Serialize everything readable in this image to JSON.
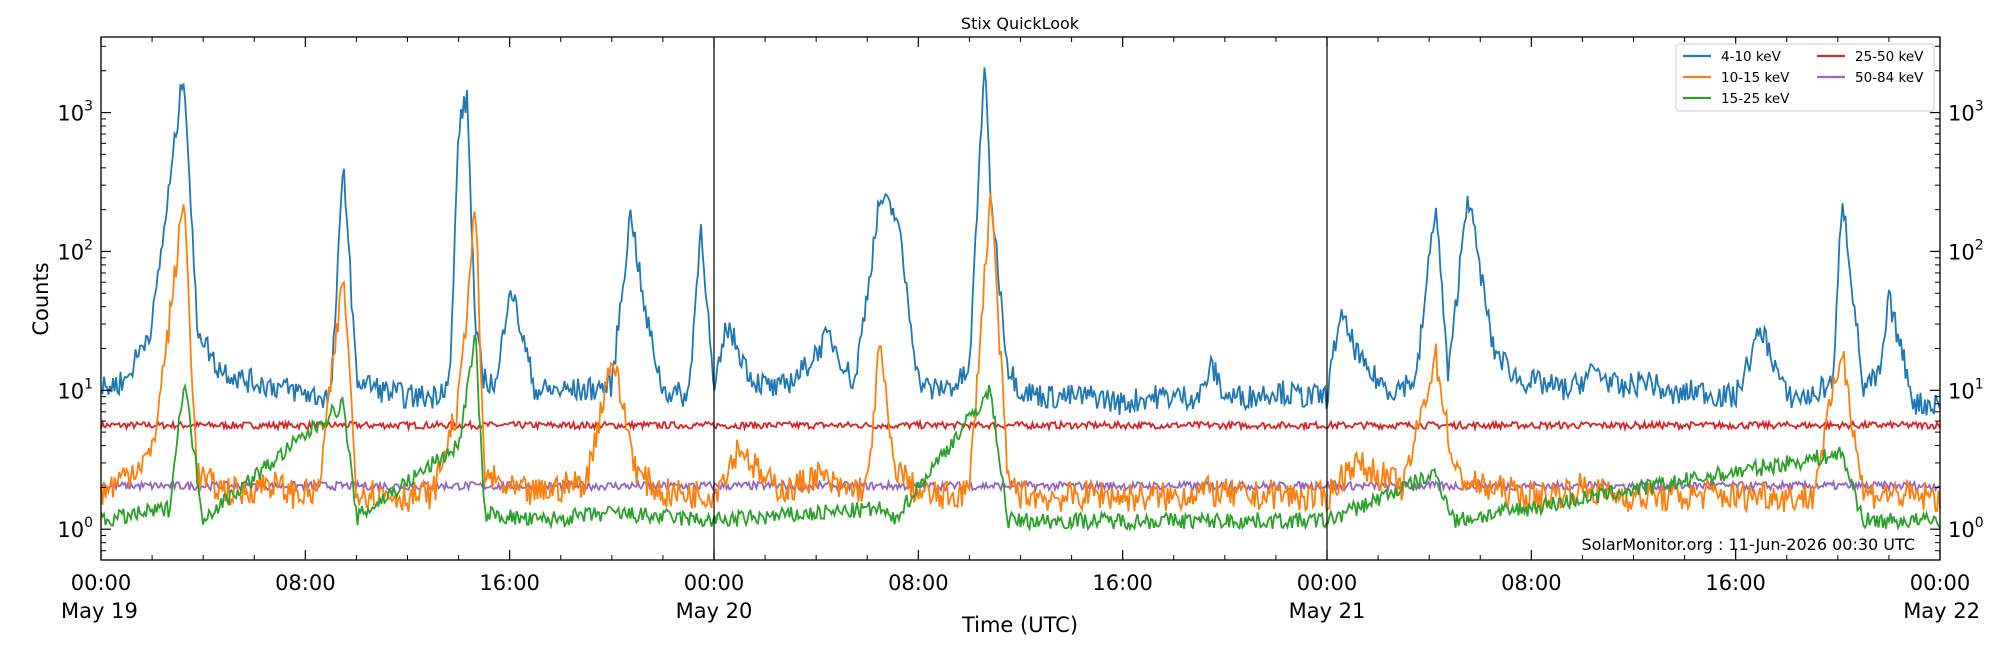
{
  "chart_data": {
    "type": "line",
    "title": "Stix QuickLook",
    "xlabel": "Time (UTC)",
    "ylabel": "Counts",
    "yscale": "log",
    "ylim": [
      0.6,
      3500
    ],
    "xlim": [
      "2026-05-19T00:00",
      "2026-05-22T00:00"
    ],
    "grid": false,
    "legend_position": "top-right",
    "watermark": "SolarMonitor.org : 11-Jun-2026 00:30 UTC",
    "x_ticks": [
      {
        "time": "2026-05-19T00:00",
        "line1": "00:00",
        "line2": "May 19"
      },
      {
        "time": "2026-05-19T08:00",
        "line1": "08:00",
        "line2": ""
      },
      {
        "time": "2026-05-19T16:00",
        "line1": "16:00",
        "line2": ""
      },
      {
        "time": "2026-05-20T00:00",
        "line1": "00:00",
        "line2": "May 20"
      },
      {
        "time": "2026-05-20T08:00",
        "line1": "08:00",
        "line2": ""
      },
      {
        "time": "2026-05-20T16:00",
        "line1": "16:00",
        "line2": ""
      },
      {
        "time": "2026-05-21T00:00",
        "line1": "00:00",
        "line2": "May 21"
      },
      {
        "time": "2026-05-21T08:00",
        "line1": "08:00",
        "line2": ""
      },
      {
        "time": "2026-05-21T16:00",
        "line1": "16:00",
        "line2": ""
      },
      {
        "time": "2026-05-22T00:00",
        "line1": "00:00",
        "line2": "May 22"
      }
    ],
    "y_ticks": [
      {
        "value": 1,
        "base": "10",
        "exp": "0"
      },
      {
        "value": 10,
        "base": "10",
        "exp": "1"
      },
      {
        "value": 100,
        "base": "10",
        "exp": "2"
      },
      {
        "value": 1000,
        "base": "10",
        "exp": "3"
      }
    ],
    "day_boundaries": [
      "2026-05-20T00:00",
      "2026-05-21T00:00"
    ],
    "series": [
      {
        "name": "4-10 keV",
        "color": "#1f77b4",
        "x": [
          "2026-05-19T00:00",
          "2026-05-19T01:00",
          "2026-05-19T02:00",
          "2026-05-19T02:40",
          "2026-05-19T03:15",
          "2026-05-19T03:45",
          "2026-05-19T04:30",
          "2026-05-19T05:30",
          "2026-05-19T06:30",
          "2026-05-19T07:30",
          "2026-05-19T08:30",
          "2026-05-19T09:00",
          "2026-05-19T09:30",
          "2026-05-19T10:00",
          "2026-05-19T11:00",
          "2026-05-19T12:00",
          "2026-05-19T13:00",
          "2026-05-19T13:40",
          "2026-05-19T14:00",
          "2026-05-19T14:20",
          "2026-05-19T14:40",
          "2026-05-19T15:00",
          "2026-05-19T15:30",
          "2026-05-19T16:00",
          "2026-05-19T17:00",
          "2026-05-19T18:00",
          "2026-05-19T19:00",
          "2026-05-19T20:00",
          "2026-05-19T20:45",
          "2026-05-19T21:15",
          "2026-05-19T22:00",
          "2026-05-19T23:00",
          "2026-05-19T23:30",
          "2026-05-20T00:00",
          "2026-05-20T00:30",
          "2026-05-20T01:30",
          "2026-05-20T02:30",
          "2026-05-20T03:30",
          "2026-05-20T04:30",
          "2026-05-20T05:30",
          "2026-05-20T06:30",
          "2026-05-20T07:10",
          "2026-05-20T08:00",
          "2026-05-20T08:30",
          "2026-05-20T09:30",
          "2026-05-20T10:00",
          "2026-05-20T10:35",
          "2026-05-20T10:50",
          "2026-05-20T11:30",
          "2026-05-20T12:00",
          "2026-05-20T13:00",
          "2026-05-20T14:00",
          "2026-05-20T15:00",
          "2026-05-20T16:00",
          "2026-05-20T17:00",
          "2026-05-20T18:00",
          "2026-05-20T19:00",
          "2026-05-20T19:30",
          "2026-05-20T20:00",
          "2026-05-20T21:00",
          "2026-05-20T22:00",
          "2026-05-20T23:00",
          "2026-05-21T00:00",
          "2026-05-21T00:30",
          "2026-05-21T01:30",
          "2026-05-21T02:30",
          "2026-05-21T03:30",
          "2026-05-21T04:15",
          "2026-05-21T04:45",
          "2026-05-21T05:30",
          "2026-05-21T06:30",
          "2026-05-21T07:30",
          "2026-05-21T08:30",
          "2026-05-21T09:30",
          "2026-05-21T10:30",
          "2026-05-21T11:30",
          "2026-05-21T12:30",
          "2026-05-21T13:30",
          "2026-05-21T14:30",
          "2026-05-21T15:30",
          "2026-05-21T16:00",
          "2026-05-21T17:00",
          "2026-05-21T18:00",
          "2026-05-21T19:00",
          "2026-05-21T19:50",
          "2026-05-21T20:10",
          "2026-05-21T21:00",
          "2026-05-21T21:40",
          "2026-05-21T22:00",
          "2026-05-21T23:00",
          "2026-05-22T00:00"
        ],
        "y": [
          10,
          12,
          30,
          280,
          2100,
          30,
          15,
          12,
          11,
          10,
          9,
          9,
          450,
          12,
          10,
          9,
          9,
          12,
          780,
          1300,
          25,
          12,
          11,
          60,
          10,
          10,
          10,
          11,
          200,
          40,
          10,
          9,
          160,
          9,
          30,
          12,
          10,
          14,
          25,
          11,
          240,
          180,
          12,
          10,
          11,
          14,
          2400,
          260,
          15,
          10,
          9,
          9,
          9,
          8,
          9,
          9,
          9,
          15,
          9,
          9,
          10,
          9,
          9,
          35,
          14,
          10,
          12,
          230,
          12,
          270,
          20,
          12,
          11,
          10,
          14,
          10,
          12,
          9,
          10,
          9,
          9,
          28,
          9,
          9,
          12,
          270,
          10,
          13,
          45,
          8,
          8
        ]
      },
      {
        "name": "10-15 keV",
        "color": "#ff7f0e",
        "x": [
          "2026-05-19T00:00",
          "2026-05-19T01:00",
          "2026-05-19T02:00",
          "2026-05-19T02:40",
          "2026-05-19T03:15",
          "2026-05-19T03:45",
          "2026-05-19T04:30",
          "2026-05-19T05:30",
          "2026-05-19T06:30",
          "2026-05-19T07:30",
          "2026-05-19T08:30",
          "2026-05-19T09:30",
          "2026-05-19T10:00",
          "2026-05-19T11:00",
          "2026-05-19T12:00",
          "2026-05-19T13:00",
          "2026-05-19T14:00",
          "2026-05-19T14:40",
          "2026-05-19T15:00",
          "2026-05-19T16:00",
          "2026-05-19T17:00",
          "2026-05-19T18:00",
          "2026-05-19T19:00",
          "2026-05-19T20:00",
          "2026-05-19T21:00",
          "2026-05-19T22:00",
          "2026-05-19T23:00",
          "2026-05-20T00:00",
          "2026-05-20T01:00",
          "2026-05-20T02:00",
          "2026-05-20T03:00",
          "2026-05-20T04:00",
          "2026-05-20T05:00",
          "2026-05-20T06:00",
          "2026-05-20T06:30",
          "2026-05-20T07:00",
          "2026-05-20T08:00",
          "2026-05-20T09:00",
          "2026-05-20T10:00",
          "2026-05-20T10:50",
          "2026-05-20T11:30",
          "2026-05-20T12:00",
          "2026-05-20T13:00",
          "2026-05-20T14:00",
          "2026-05-20T15:00",
          "2026-05-20T16:00",
          "2026-05-20T17:00",
          "2026-05-20T18:00",
          "2026-05-20T19:00",
          "2026-05-20T20:00",
          "2026-05-20T21:00",
          "2026-05-20T22:00",
          "2026-05-20T23:00",
          "2026-05-21T00:00",
          "2026-05-21T01:00",
          "2026-05-21T02:00",
          "2026-05-21T03:00",
          "2026-05-21T04:15",
          "2026-05-21T05:00",
          "2026-05-21T06:00",
          "2026-05-21T07:00",
          "2026-05-21T08:00",
          "2026-05-21T09:00",
          "2026-05-21T10:00",
          "2026-05-21T11:00",
          "2026-05-21T12:00",
          "2026-05-21T13:00",
          "2026-05-21T14:00",
          "2026-05-21T15:00",
          "2026-05-21T16:00",
          "2026-05-21T17:00",
          "2026-05-21T18:00",
          "2026-05-21T19:00",
          "2026-05-21T20:10",
          "2026-05-21T21:00",
          "2026-05-21T22:00",
          "2026-05-21T23:00",
          "2026-05-22T00:00"
        ],
        "y": [
          1.8,
          2.5,
          3.5,
          30,
          250,
          2.5,
          2,
          1.8,
          2.2,
          1.8,
          1.8,
          70,
          1.9,
          1.8,
          1.7,
          1.8,
          8,
          220,
          2.5,
          1.9,
          1.8,
          2,
          2.2,
          18,
          2.5,
          1.8,
          1.8,
          1.8,
          4,
          2.2,
          1.9,
          2.5,
          1.9,
          2,
          22,
          3,
          1.8,
          1.7,
          1.9,
          280,
          2.2,
          1.8,
          1.7,
          1.7,
          1.8,
          1.7,
          1.7,
          1.7,
          1.9,
          1.8,
          1.7,
          1.8,
          1.7,
          1.7,
          3,
          2.5,
          2,
          18,
          2.5,
          2,
          1.9,
          1.7,
          1.8,
          2,
          1.8,
          1.7,
          1.7,
          1.7,
          1.8,
          1.7,
          1.8,
          1.7,
          1.7,
          20,
          1.8,
          1.8,
          1.7,
          1.7
        ]
      },
      {
        "name": "15-25 keV",
        "color": "#2ca02c",
        "x": [
          "2026-05-19T00:00",
          "2026-05-19T02:40",
          "2026-05-19T03:15",
          "2026-05-19T04:00",
          "2026-05-19T09:30",
          "2026-05-19T10:00",
          "2026-05-19T14:00",
          "2026-05-19T14:40",
          "2026-05-19T15:00",
          "2026-05-19T17:00",
          "2026-05-19T20:00",
          "2026-05-20T00:00",
          "2026-05-20T06:30",
          "2026-05-20T07:00",
          "2026-05-20T10:50",
          "2026-05-20T11:30",
          "2026-05-21T00:00",
          "2026-05-21T04:15",
          "2026-05-21T05:00",
          "2026-05-21T20:10",
          "2026-05-21T21:00",
          "2026-05-22T00:00"
        ],
        "y": [
          1.15,
          1.4,
          12,
          1.2,
          8,
          1.2,
          4,
          25,
          1.3,
          1.15,
          1.3,
          1.15,
          1.4,
          1.15,
          10,
          1.15,
          1.15,
          2.5,
          1.15,
          3.5,
          1.15,
          1.15
        ]
      },
      {
        "name": "25-50 keV",
        "color": "#d62728",
        "x": [
          "2026-05-19T00:00",
          "2026-05-19T12:00",
          "2026-05-20T00:00",
          "2026-05-20T12:00",
          "2026-05-21T00:00",
          "2026-05-21T12:00",
          "2026-05-22T00:00"
        ],
        "y": [
          5.6,
          5.6,
          5.6,
          5.6,
          5.6,
          5.6,
          5.6
        ]
      },
      {
        "name": "50-84 keV",
        "color": "#9467bd",
        "x": [
          "2026-05-19T00:00",
          "2026-05-19T12:00",
          "2026-05-20T00:00",
          "2026-05-20T12:00",
          "2026-05-21T00:00",
          "2026-05-21T12:00",
          "2026-05-22T00:00"
        ],
        "y": [
          2.05,
          2.05,
          2.05,
          2.05,
          2.05,
          2.05,
          2.05
        ]
      }
    ]
  }
}
